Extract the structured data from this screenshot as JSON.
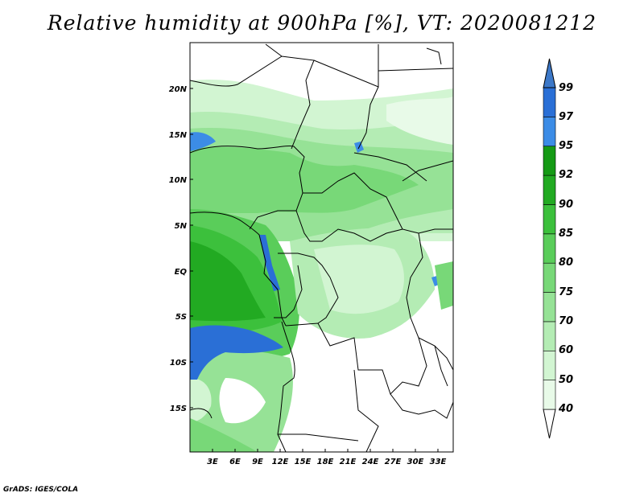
{
  "title": "Relative humidity at 900hPa [%], VT: 2020081212",
  "credit": "GrADS: IGES/COLA",
  "map": {
    "lon_range": [
      0,
      35
    ],
    "lat_range": [
      -20,
      25
    ],
    "lat_ticks": [
      "20N",
      "15N",
      "10N",
      "5N",
      "EQ",
      "5S",
      "10S",
      "15S"
    ],
    "lon_ticks": [
      "3E",
      "6E",
      "9E",
      "12E",
      "15E",
      "18E",
      "21E",
      "24E",
      "27E",
      "30E",
      "33E"
    ]
  },
  "colorbar": {
    "labels": [
      "40",
      "50",
      "60",
      "70",
      "75",
      "80",
      "85",
      "90",
      "92",
      "95",
      "97",
      "99"
    ],
    "colors": [
      "#ffffff",
      "#e8fae8",
      "#d2f5d2",
      "#b4ecb4",
      "#96e296",
      "#78d878",
      "#5acd5a",
      "#3cc03c",
      "#22aa22",
      "#159a15",
      "#3c8ce6",
      "#2a6fd6",
      "#3c78c8"
    ]
  },
  "legend_colors": {
    "land_light": "#e8fae8",
    "land_mid": "#96e296",
    "land_dark": "#3cc03c",
    "humid_blue": "#2a6fd6",
    "border": "#000000"
  }
}
